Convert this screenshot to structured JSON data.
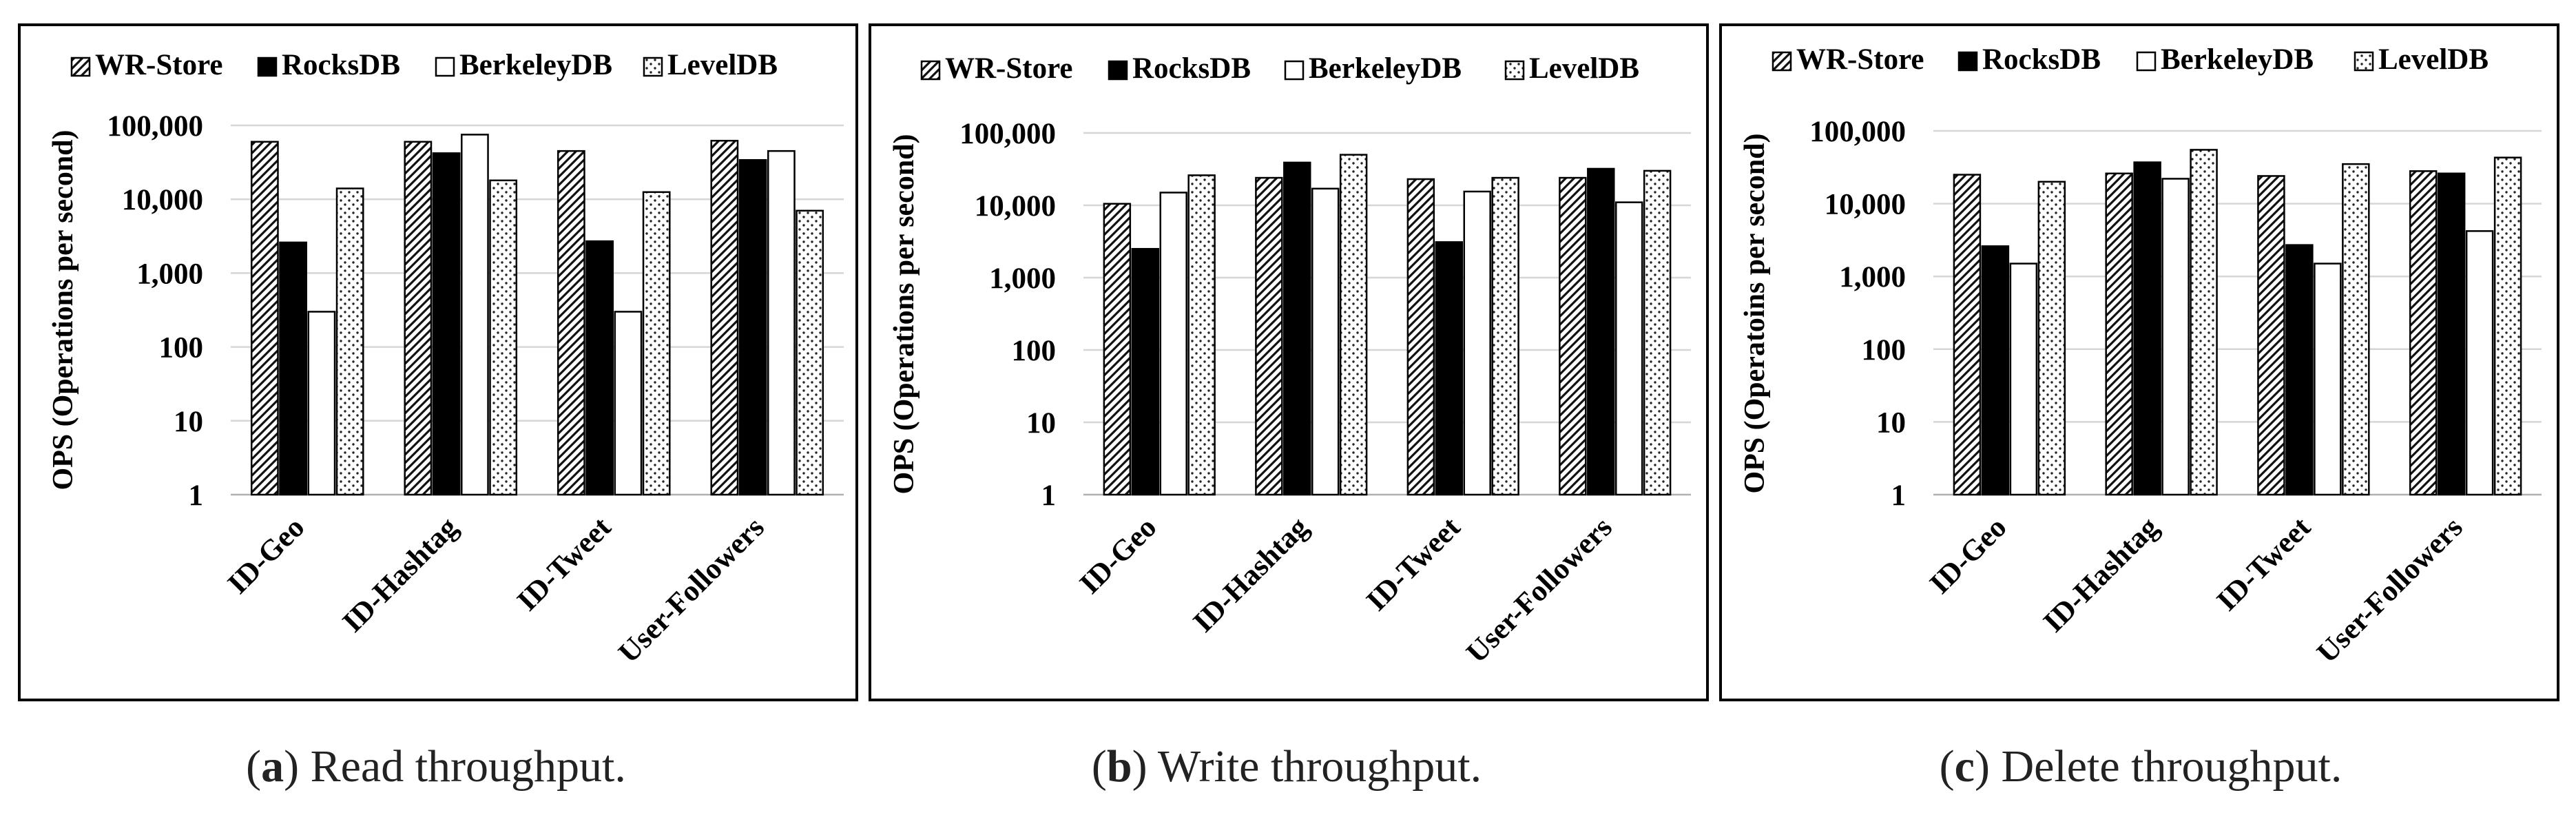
{
  "legend": [
    "WR-Store",
    "RocksDB",
    "BerkeleyDB",
    "LevelDB"
  ],
  "y_tick_labels": [
    "1",
    "10",
    "100",
    "1,000",
    "10,000",
    "100,000"
  ],
  "chart_data": [
    {
      "type": "bar",
      "subtitle_letter": "a",
      "subtitle_text": "Read throughput.",
      "ylabel": "OPS (Operations per second)",
      "y_scale": "log",
      "ylim": [
        1,
        100000
      ],
      "categories": [
        "ID-Geo",
        "ID-Hashtag",
        "ID-Tweet",
        "User-Followers"
      ],
      "series": [
        {
          "name": "WR-Store",
          "values": [
            60000,
            60000,
            45000,
            62000
          ]
        },
        {
          "name": "RocksDB",
          "values": [
            2600,
            42000,
            2700,
            34000
          ]
        },
        {
          "name": "BerkeleyDB",
          "values": [
            300,
            75000,
            300,
            45000
          ]
        },
        {
          "name": "LevelDB",
          "values": [
            14000,
            18000,
            12500,
            7000
          ]
        }
      ],
      "grid": true,
      "legend_position": "top"
    },
    {
      "type": "bar",
      "subtitle_letter": "b",
      "subtitle_text": "Write throughput.",
      "ylabel": "OPS (Operations per second)",
      "y_scale": "log",
      "ylim": [
        1,
        100000
      ],
      "categories": [
        "ID-Geo",
        "ID-Hashtag",
        "ID-Tweet",
        "User-Followers"
      ],
      "series": [
        {
          "name": "WR-Store",
          "values": [
            10500,
            24000,
            23000,
            24000
          ]
        },
        {
          "name": "RocksDB",
          "values": [
            2500,
            39000,
            3100,
            32000
          ]
        },
        {
          "name": "BerkeleyDB",
          "values": [
            15000,
            17000,
            15500,
            11000
          ]
        },
        {
          "name": "LevelDB",
          "values": [
            26000,
            50000,
            24000,
            30000
          ]
        }
      ],
      "grid": true,
      "legend_position": "top"
    },
    {
      "type": "bar",
      "subtitle_letter": "c",
      "subtitle_text": "Delete throughput.",
      "ylabel": "OPS (Operatoins per second)",
      "y_scale": "log",
      "ylim": [
        1,
        100000
      ],
      "categories": [
        "ID-Geo",
        "ID-Hashtag",
        "ID-Tweet",
        "User-Followers"
      ],
      "series": [
        {
          "name": "WR-Store",
          "values": [
            25000,
            26000,
            24000,
            28000
          ]
        },
        {
          "name": "RocksDB",
          "values": [
            2600,
            37000,
            2700,
            26000
          ]
        },
        {
          "name": "BerkeleyDB",
          "values": [
            1500,
            22000,
            1500,
            4200
          ]
        },
        {
          "name": "LevelDB",
          "values": [
            20000,
            55000,
            35000,
            43000
          ]
        }
      ],
      "grid": true,
      "legend_position": "top"
    }
  ]
}
